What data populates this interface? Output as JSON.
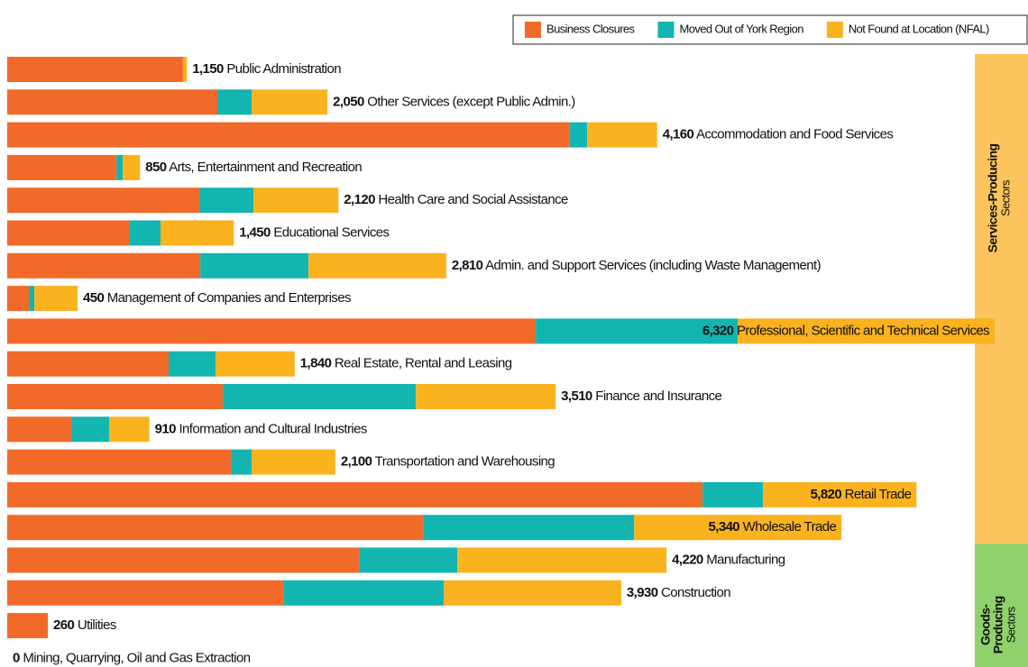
{
  "chart_data": {
    "type": "stacked-bar-horizontal",
    "categories": [
      "Public Administration",
      "Other Services (except Public Admin.)",
      "Accommodation and Food Services",
      "Arts, Entertainment and Recreation",
      "Health Care and Social Assistance",
      "Educational Services",
      "Admin. and Support Services (including Waste Management)",
      "Management of Companies and Enterprises",
      "Professional, Scientific and Technical Services",
      "Real Estate, Rental and Leasing",
      "Finance and Insurance",
      "Information and Cultural Industries",
      "Transportation and Warehousing",
      "Retail Trade",
      "Wholesale Trade",
      "Manufacturing",
      "Construction",
      "Utilities",
      "Mining, Quarrying, Oil and Gas Extraction"
    ],
    "totals": [
      1150,
      2050,
      4160,
      850,
      2120,
      1450,
      2810,
      450,
      6320,
      1840,
      3510,
      910,
      2100,
      5820,
      5340,
      4220,
      3930,
      260,
      0
    ],
    "total_labels": [
      "1,150",
      "2,050",
      "4,160",
      "850",
      "2,120",
      "1,450",
      "2,810",
      "450",
      "6,320",
      "1,840",
      "3,510",
      "910",
      "2,100",
      "5,820",
      "5,340",
      "4,220",
      "3,930",
      "260",
      "0"
    ],
    "series": [
      {
        "name": "Business Closures",
        "color": "#f26a2a",
        "values": [
          1125,
          1345,
          3597,
          700,
          1230,
          785,
          1236,
          139,
          3383,
          1033,
          1380,
          410,
          1432,
          4451,
          2662,
          2252,
          1767,
          260,
          0
        ]
      },
      {
        "name": "Moved Out of York Region",
        "color": "#12b5b0",
        "values": [
          0,
          220,
          115,
          40,
          346,
          196,
          693,
          35,
          1293,
          300,
          1236,
          242,
          133,
          387,
          1351,
          629,
          1028,
          0,
          0
        ]
      },
      {
        "name": "Not Found at Location (NFAL)",
        "color": "#fbb21f",
        "values": [
          25,
          485,
          448,
          110,
          544,
          469,
          881,
          276,
          1644,
          507,
          894,
          258,
          535,
          982,
          1327,
          1339,
          1135,
          0,
          0
        ]
      }
    ],
    "xlim": [
      0,
      6320
    ],
    "sectors": [
      {
        "lines": [
          "Services-Producing"
        ],
        "sublabel": "Sectors",
        "color": "#fcc45c",
        "rows": 15
      },
      {
        "lines": [
          "Goods-",
          "Producing"
        ],
        "sublabel": "Sectors",
        "color": "#8fd16a",
        "rows": 4
      }
    ]
  }
}
